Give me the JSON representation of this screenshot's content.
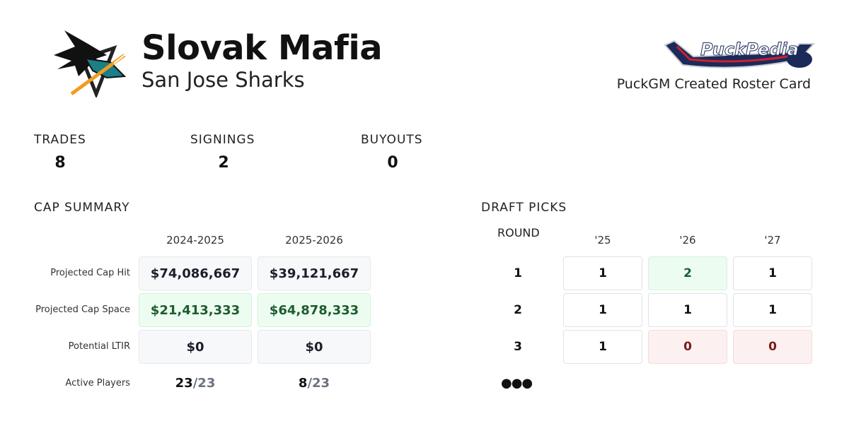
{
  "header": {
    "team_name": "Slovak Mafia",
    "team": "San Jose Sharks",
    "brand": "PuckPedia",
    "tagline": "PuckGM Created Roster Card"
  },
  "stats": [
    {
      "label": "TRADES",
      "value": "8"
    },
    {
      "label": "SIGNINGS",
      "value": "2"
    },
    {
      "label": "BUYOUTS",
      "value": "0"
    }
  ],
  "cap": {
    "title": "CAP SUMMARY",
    "columns": [
      "2024-2025",
      "2025-2026"
    ],
    "rows": [
      {
        "label": "Projected Cap Hit",
        "values": [
          "$74,086,667",
          "$39,121,667"
        ],
        "status": "neutral"
      },
      {
        "label": "Projected Cap Space",
        "values": [
          "$21,413,333",
          "$64,878,333"
        ],
        "status": "positive"
      },
      {
        "label": "Potential LTIR",
        "values": [
          "$0",
          "$0"
        ],
        "status": "neutral"
      }
    ],
    "active": {
      "label": "Active Players",
      "values": [
        {
          "n": "23",
          "d": "/23"
        },
        {
          "n": "8",
          "d": "/23"
        }
      ]
    }
  },
  "draft": {
    "title": "DRAFT PICKS",
    "round_label": "ROUND",
    "years": [
      "'25",
      "'26",
      "'27"
    ],
    "rounds": [
      {
        "round": "1",
        "picks": [
          "1",
          "2",
          "1"
        ]
      },
      {
        "round": "2",
        "picks": [
          "1",
          "1",
          "1"
        ]
      },
      {
        "round": "3",
        "picks": [
          "1",
          "0",
          "0"
        ]
      }
    ],
    "more": "●●●"
  },
  "colors": {
    "positive_bg": "#edfcf0",
    "negative_bg": "#fdf0f0",
    "teal": "#1a7f86"
  }
}
